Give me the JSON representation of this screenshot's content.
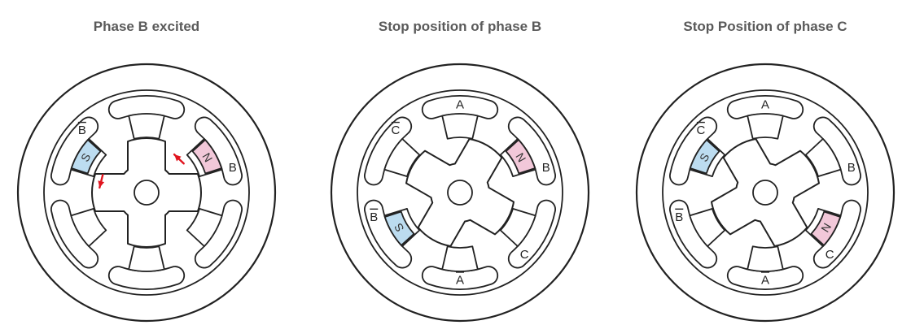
{
  "colors": {
    "north": "#f2c8d9",
    "south": "#bcdcf0",
    "arrow": "#e0141e",
    "stroke": "#222222",
    "title": "#5a5a5a"
  },
  "panels": [
    {
      "title": "Phase B excited",
      "rotor_angle_deg": 0,
      "poles": [
        {
          "label": "",
          "bar": false
        },
        {
          "label": "B",
          "bar": false
        },
        {
          "label": "",
          "bar": false
        },
        {
          "label": "",
          "bar": false
        },
        {
          "label": "",
          "bar": false
        },
        {
          "label": "B",
          "bar": true
        }
      ],
      "magnets": [
        {
          "pole": 1,
          "letter": "N",
          "polarity": "north"
        },
        {
          "pole": 5,
          "letter": "S",
          "polarity": "south"
        }
      ],
      "arrows": [
        {
          "pole": 1,
          "direction": "counterclockwise"
        },
        {
          "pole": 5,
          "direction": "counterclockwise"
        }
      ]
    },
    {
      "title": "Stop position of phase B",
      "rotor_angle_deg": 30,
      "poles": [
        {
          "label": "A",
          "bar": false
        },
        {
          "label": "B",
          "bar": false
        },
        {
          "label": "C",
          "bar": false
        },
        {
          "label": "A",
          "bar": true
        },
        {
          "label": "B",
          "bar": true
        },
        {
          "label": "C",
          "bar": true
        }
      ],
      "magnets": [
        {
          "pole": 1,
          "letter": "N",
          "polarity": "north"
        },
        {
          "pole": 4,
          "letter": "S",
          "polarity": "south"
        }
      ],
      "arrows": []
    },
    {
      "title": "Stop Position of phase C",
      "rotor_angle_deg": 60,
      "poles": [
        {
          "label": "A",
          "bar": false
        },
        {
          "label": "B",
          "bar": false
        },
        {
          "label": "C",
          "bar": false
        },
        {
          "label": "A",
          "bar": true
        },
        {
          "label": "B",
          "bar": true
        },
        {
          "label": "C",
          "bar": true
        }
      ],
      "magnets": [
        {
          "pole": 2,
          "letter": "N",
          "polarity": "north"
        },
        {
          "pole": 5,
          "letter": "S",
          "polarity": "south"
        }
      ],
      "arrows": []
    }
  ]
}
